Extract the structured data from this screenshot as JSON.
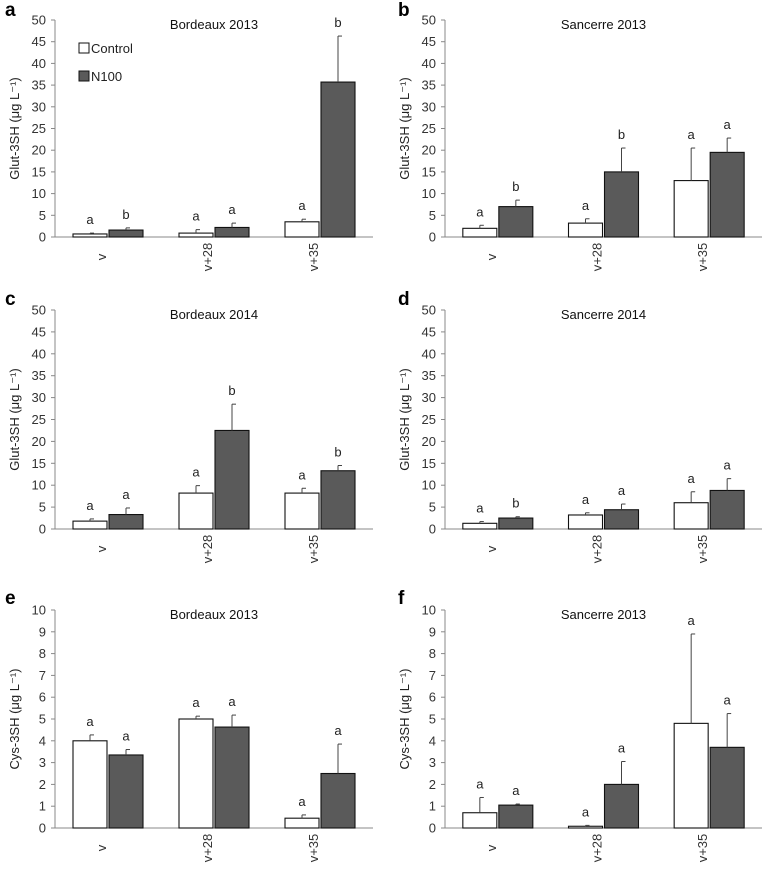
{
  "figure": {
    "legend": [
      {
        "name": "Control",
        "color": "#ffffff"
      },
      {
        "name": "N100",
        "color": "#5a5a5a"
      }
    ]
  },
  "chart_data": [
    {
      "panel": "a",
      "type": "bar",
      "title": "Bordeaux 2013",
      "ylabel": "Glut-3SH (μg L⁻¹)",
      "ylim": [
        0,
        50
      ],
      "ystep": 5,
      "categories": [
        "v",
        "v+28",
        "v+35"
      ],
      "series": [
        {
          "name": "Control",
          "values": [
            0.7,
            0.9,
            3.5
          ],
          "errors": [
            0.2,
            0.8,
            0.6
          ],
          "letters": [
            "a",
            "a",
            "a"
          ]
        },
        {
          "name": "N100",
          "values": [
            1.6,
            2.2,
            35.7
          ],
          "errors": [
            0.5,
            1.0,
            10.6
          ],
          "letters": [
            "b",
            "a",
            "b"
          ]
        }
      ]
    },
    {
      "panel": "b",
      "type": "bar",
      "title": "Sancerre 2013",
      "ylabel": "Glut-3SH (μg L⁻¹)",
      "ylim": [
        0,
        50
      ],
      "ystep": 5,
      "categories": [
        "v",
        "v+28",
        "v+35"
      ],
      "series": [
        {
          "name": "Control",
          "values": [
            2.0,
            3.2,
            13.0
          ],
          "errors": [
            0.7,
            1.0,
            7.5
          ],
          "letters": [
            "a",
            "a",
            "a"
          ]
        },
        {
          "name": "N100",
          "values": [
            7.0,
            15.0,
            19.5
          ],
          "errors": [
            1.5,
            5.5,
            3.3
          ],
          "letters": [
            "b",
            "b",
            "a"
          ]
        }
      ]
    },
    {
      "panel": "c",
      "type": "bar",
      "title": "Bordeaux 2014",
      "ylabel": "Glut-3SH (μg L⁻¹)",
      "ylim": [
        0,
        50
      ],
      "ystep": 5,
      "categories": [
        "v",
        "v+28",
        "v+35"
      ],
      "series": [
        {
          "name": "Control",
          "values": [
            1.8,
            8.2,
            8.2
          ],
          "errors": [
            0.5,
            1.7,
            1.1
          ],
          "letters": [
            "a",
            "a",
            "a"
          ]
        },
        {
          "name": "N100",
          "values": [
            3.3,
            22.5,
            13.3
          ],
          "errors": [
            1.5,
            6.0,
            1.2
          ],
          "letters": [
            "a",
            "b",
            "b"
          ]
        }
      ]
    },
    {
      "panel": "d",
      "type": "bar",
      "title": "Sancerre 2014",
      "ylabel": "Glut-3SH (μg L⁻¹)",
      "ylim": [
        0,
        50
      ],
      "ystep": 5,
      "categories": [
        "v",
        "v+28",
        "v+35"
      ],
      "series": [
        {
          "name": "Control",
          "values": [
            1.3,
            3.2,
            6.0
          ],
          "errors": [
            0.4,
            0.5,
            2.5
          ],
          "letters": [
            "a",
            "a",
            "a"
          ]
        },
        {
          "name": "N100",
          "values": [
            2.5,
            4.4,
            8.8
          ],
          "errors": [
            0.3,
            1.3,
            2.7
          ],
          "letters": [
            "b",
            "a",
            "a"
          ]
        }
      ]
    },
    {
      "panel": "e",
      "type": "bar",
      "title": "Bordeaux 2013",
      "ylabel": "Cys-3SH (μg L⁻¹)",
      "ylim": [
        0,
        10
      ],
      "ystep": 1,
      "categories": [
        "v",
        "v+28",
        "v+35"
      ],
      "series": [
        {
          "name": "Control",
          "values": [
            4.0,
            5.0,
            0.45
          ],
          "errors": [
            0.27,
            0.13,
            0.15
          ],
          "letters": [
            "a",
            "a",
            "a"
          ]
        },
        {
          "name": "N100",
          "values": [
            3.35,
            4.63,
            2.5
          ],
          "errors": [
            0.25,
            0.55,
            1.35
          ],
          "letters": [
            "a",
            "a",
            "a"
          ]
        }
      ]
    },
    {
      "panel": "f",
      "type": "bar",
      "title": "Sancerre 2013",
      "ylabel": "Cys-3SH (μg L⁻¹)",
      "ylim": [
        0,
        10
      ],
      "ystep": 1,
      "categories": [
        "v",
        "v+28",
        "v+35"
      ],
      "series": [
        {
          "name": "Control",
          "values": [
            0.7,
            0.08,
            4.8
          ],
          "errors": [
            0.7,
            0.04,
            4.1
          ],
          "letters": [
            "a",
            "a",
            "a"
          ]
        },
        {
          "name": "N100",
          "values": [
            1.05,
            2.0,
            3.7
          ],
          "errors": [
            0.05,
            1.05,
            1.55
          ],
          "letters": [
            "a",
            "a",
            "a"
          ]
        }
      ]
    }
  ]
}
